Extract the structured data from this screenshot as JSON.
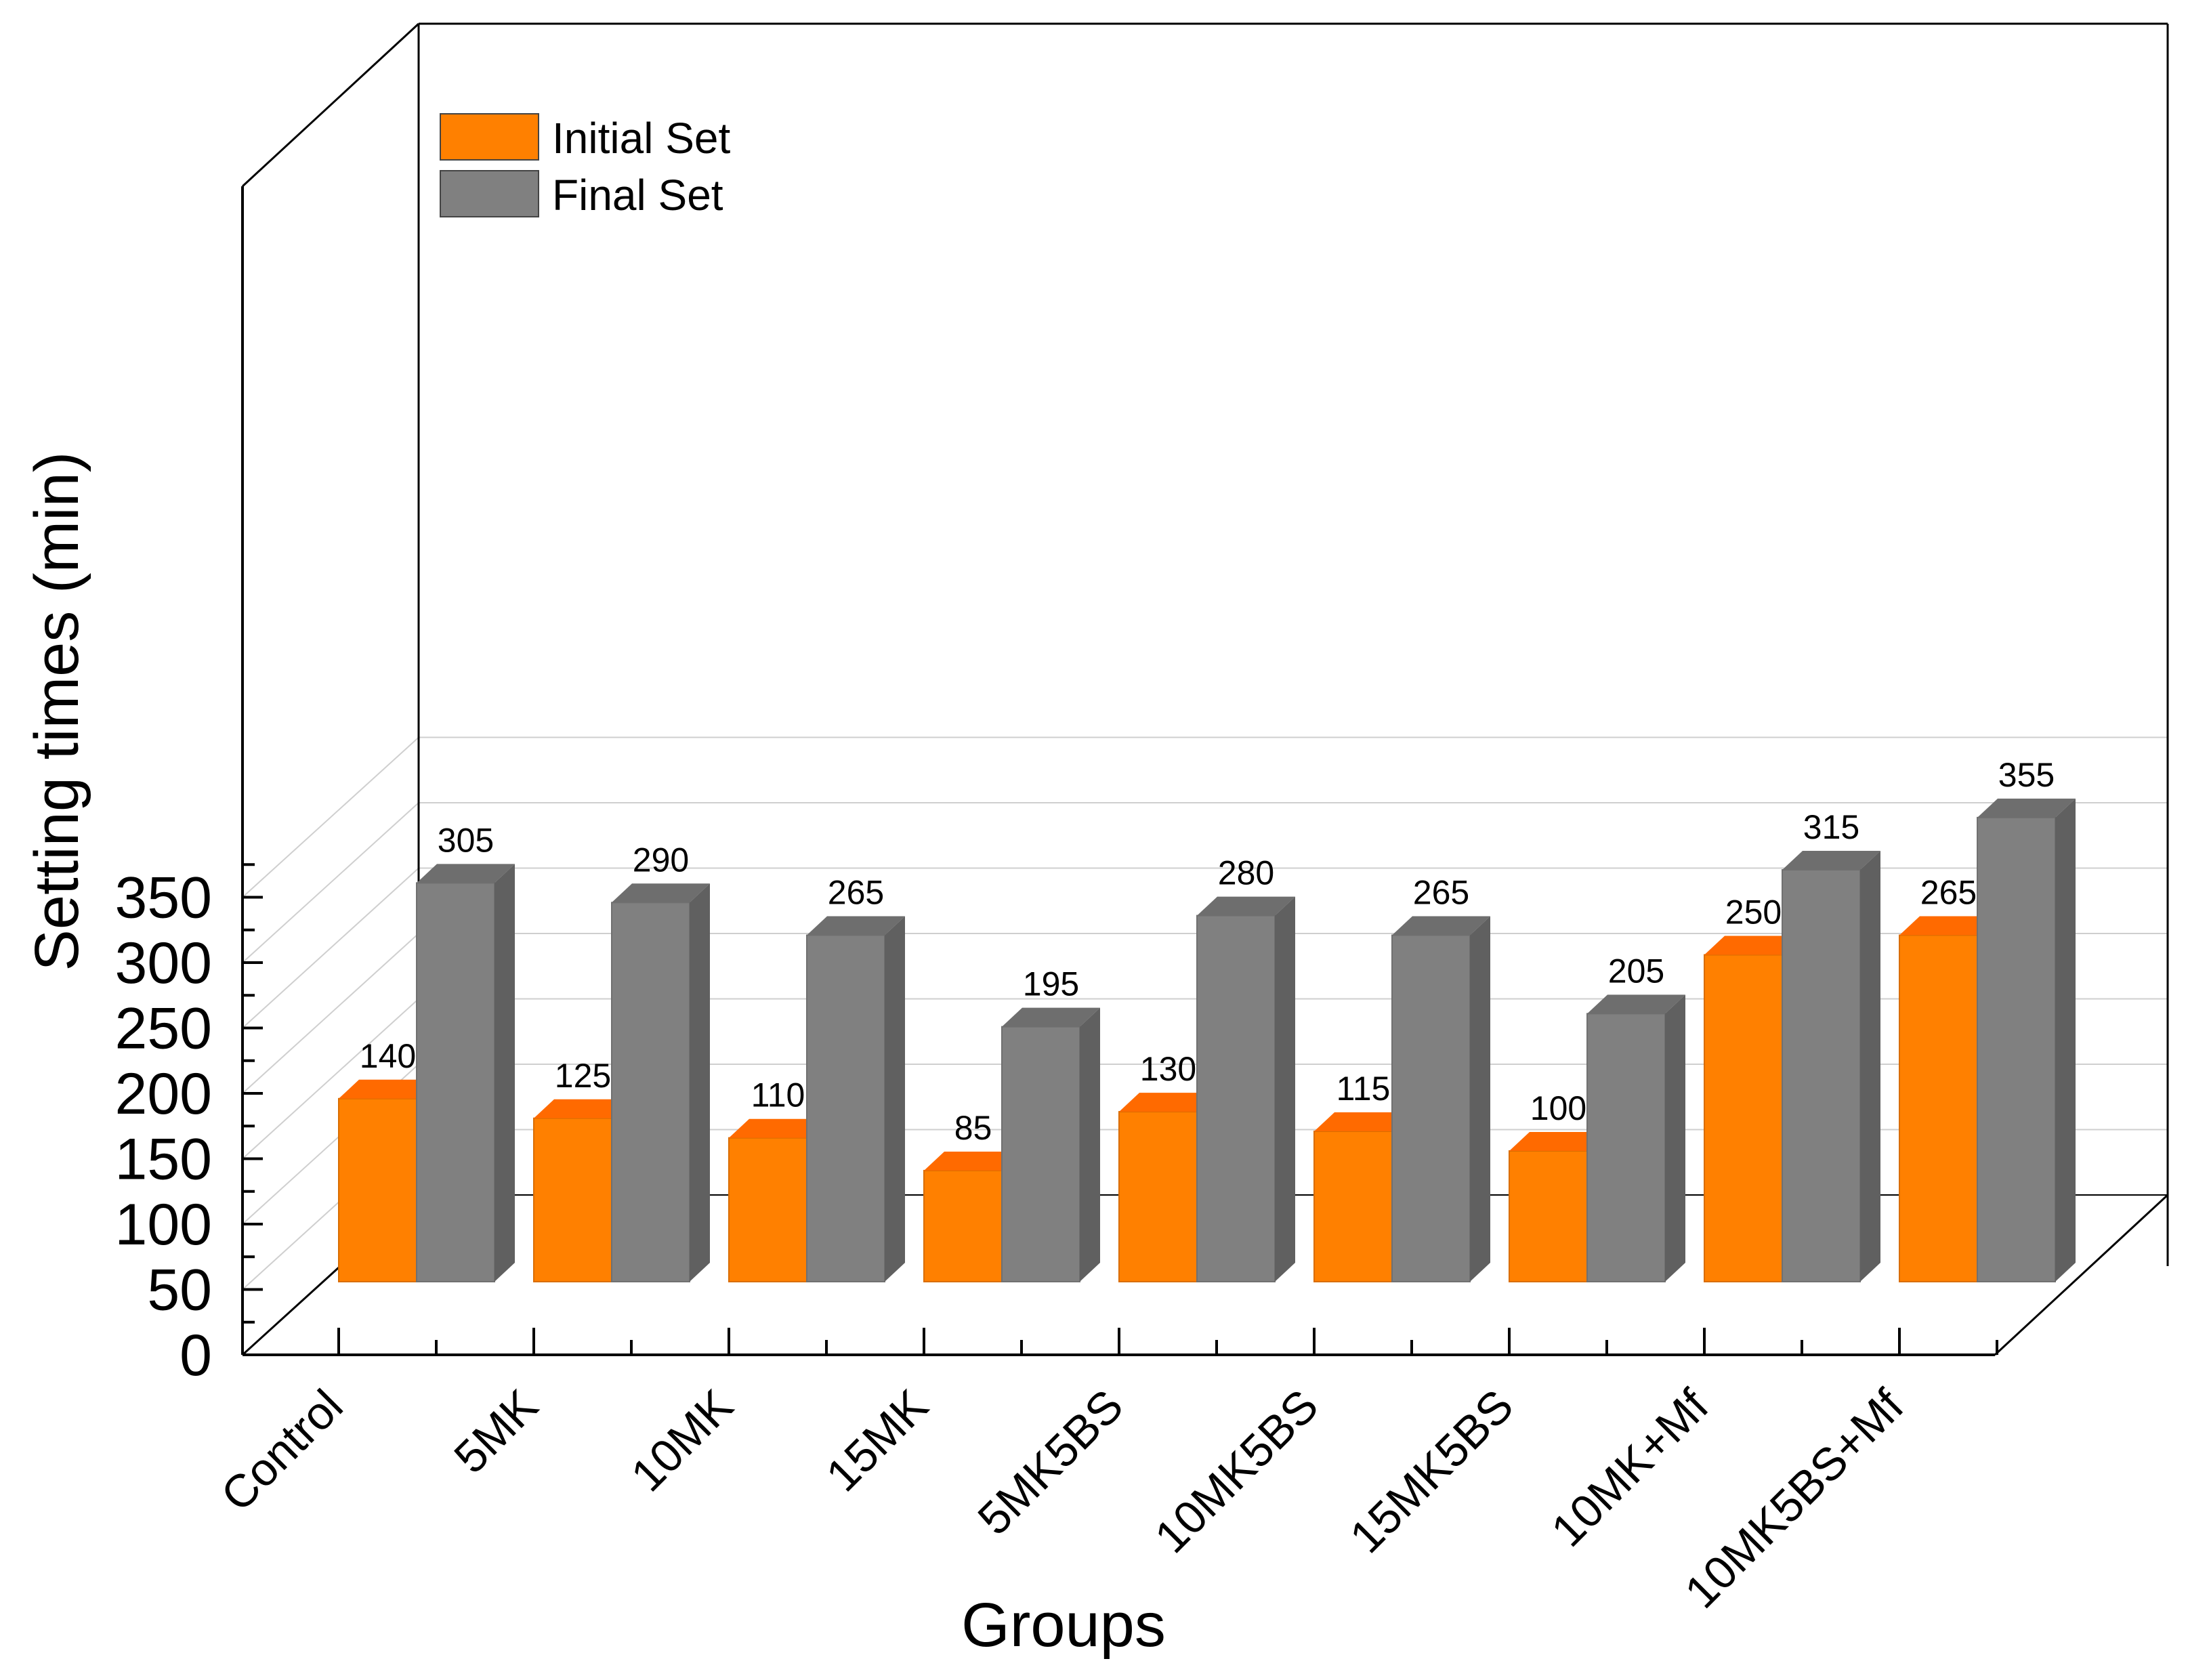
{
  "chart_data": {
    "type": "bar",
    "style": "3d-clustered",
    "title": "",
    "xlabel": "Groups",
    "ylabel": "Setting times (min)",
    "ylim": [
      0,
      380
    ],
    "yticks": [
      0,
      50,
      100,
      150,
      200,
      250,
      300,
      350
    ],
    "grid": true,
    "legend_position": "top-left",
    "categories": [
      "Control",
      "5MK",
      "10MK",
      "15MK",
      "5MK5BS",
      "10MK5BS",
      "15MK5BS",
      "10MK+Mf",
      "10MK5BS+Mf"
    ],
    "series": [
      {
        "name": "Initial Set",
        "color": "#ff8000",
        "values": [
          140,
          125,
          110,
          85,
          130,
          115,
          100,
          250,
          265
        ]
      },
      {
        "name": "Final Set",
        "color": "#808080",
        "values": [
          305,
          290,
          265,
          195,
          280,
          265,
          205,
          315,
          355
        ]
      }
    ]
  }
}
